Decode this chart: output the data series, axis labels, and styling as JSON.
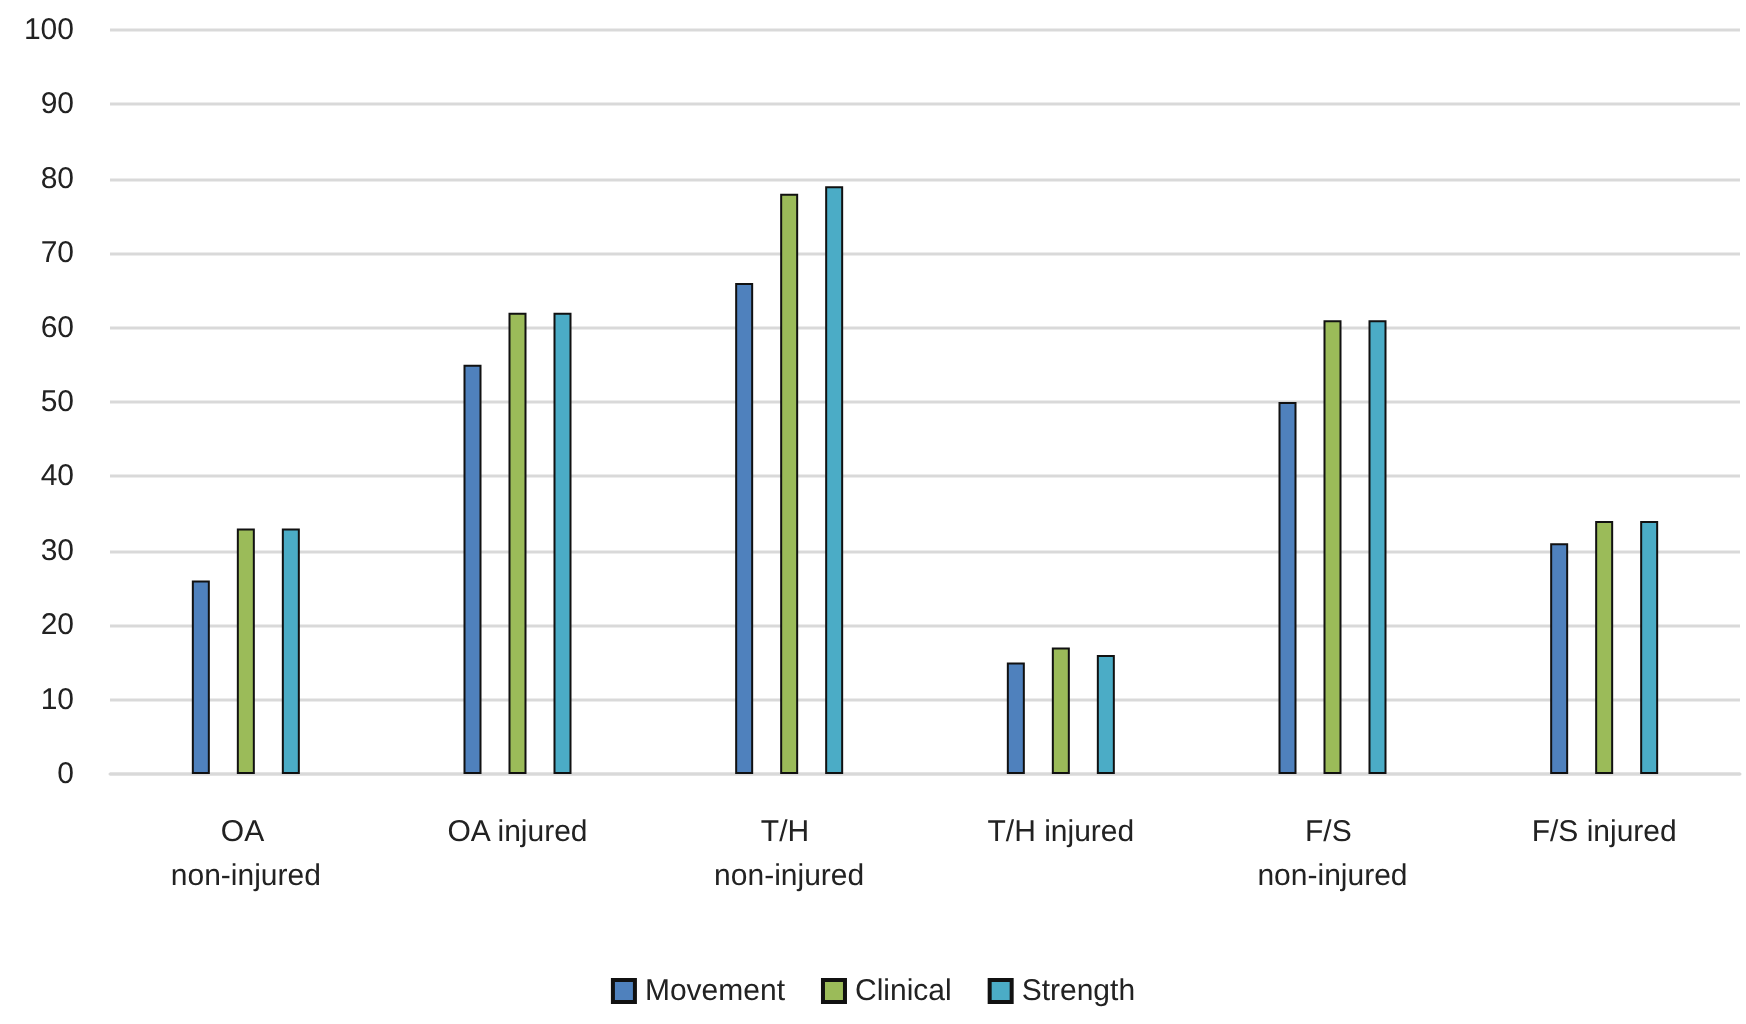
{
  "chart_data": {
    "type": "bar",
    "categories": [
      "OA non-injured",
      "OA injured",
      "T/H non-injured",
      "T/H injured",
      "F/S non-injured",
      "F/S injured"
    ],
    "series": [
      {
        "name": "Movement",
        "color": "#4f81bd",
        "values": [
          26,
          55,
          66,
          15,
          50,
          31
        ]
      },
      {
        "name": "Clinical",
        "color": "#9bbb59",
        "values": [
          33,
          62,
          78,
          17,
          61,
          34
        ]
      },
      {
        "name": "Strength",
        "color": "#4bacc6",
        "values": [
          33,
          62,
          79,
          16,
          61,
          34
        ]
      }
    ],
    "ylim": [
      0,
      100
    ],
    "yticks": [
      0,
      10,
      20,
      30,
      40,
      50,
      60,
      70,
      80,
      90,
      100
    ],
    "grid": "y",
    "legend": "bottom"
  }
}
